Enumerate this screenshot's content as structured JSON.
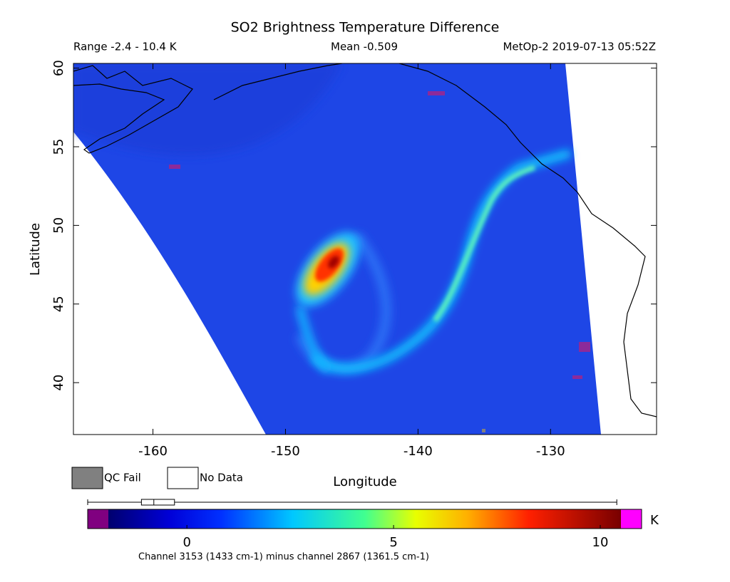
{
  "map": {
    "title": "SO2 Brightness Temperature Difference",
    "range_label": "Range -2.4 - 10.4 K",
    "mean_label": "Mean -0.509",
    "source_label": "MetOp-2 2019-07-13 05:52Z",
    "xlabel": "Longitude",
    "ylabel": "Latitude",
    "xlim": [
      -166,
      -122
    ],
    "ylim": [
      36.7,
      60.3
    ],
    "xticks": [
      -160,
      -150,
      -140,
      -130
    ],
    "yticks": [
      40,
      45,
      50,
      55,
      60
    ],
    "legend": [
      {
        "label": "QC Fail",
        "color": "#808080"
      },
      {
        "label": "No Data",
        "color": "#ffffff"
      }
    ],
    "colorbar": {
      "lim": [
        -1.9,
        10.5
      ],
      "ticks": [
        0,
        5,
        10
      ],
      "unit": "K",
      "low_color": "#800080",
      "high_color": "#ff00ff",
      "boxplot": {
        "min": -2.4,
        "q1": -1.1,
        "median": -0.8,
        "q3": -0.3,
        "max": 10.4
      },
      "note": "Channel 3153 (1433 cm-1) minus channel 2867 (1361.5 cm-1)"
    }
  }
}
